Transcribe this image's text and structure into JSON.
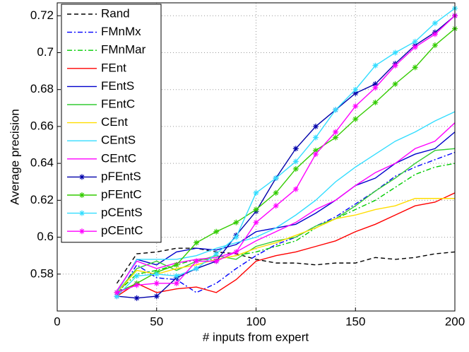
{
  "chart_data": {
    "type": "line",
    "x_label": "# inputs from expert",
    "y_label": "Average precision",
    "x": [
      30,
      40,
      50,
      60,
      70,
      80,
      90,
      100,
      110,
      120,
      130,
      140,
      150,
      160,
      170,
      180,
      190,
      200
    ],
    "xlim": [
      0,
      200
    ],
    "ylim": [
      0.56,
      0.727
    ],
    "xticks": [
      0,
      50,
      100,
      150,
      200
    ],
    "yticks": [
      0.58,
      0.6,
      0.62,
      0.64,
      0.66,
      0.68,
      0.7,
      0.72
    ],
    "grid": true,
    "legend": "upper left",
    "series": [
      {
        "name": "Rand",
        "color": "#000000",
        "dash": "dashed",
        "values": [
          0.575,
          0.591,
          0.592,
          0.594,
          0.594,
          0.592,
          0.591,
          0.588,
          0.586,
          0.586,
          0.585,
          0.586,
          0.586,
          0.589,
          0.588,
          0.589,
          0.591,
          0.592
        ]
      },
      {
        "name": "FMnMx",
        "color": "#0000ff",
        "dash": "dashdot",
        "values": [
          0.568,
          0.585,
          0.578,
          0.577,
          0.57,
          0.575,
          0.583,
          0.59,
          0.596,
          0.6,
          0.606,
          0.611,
          0.618,
          0.625,
          0.633,
          0.638,
          0.642,
          0.646
        ]
      },
      {
        "name": "FMnMar",
        "color": "#00cc00",
        "dash": "dashdot",
        "values": [
          0.57,
          0.58,
          0.582,
          0.585,
          0.588,
          0.588,
          0.59,
          0.592,
          0.595,
          0.598,
          0.605,
          0.61,
          0.615,
          0.62,
          0.627,
          0.634,
          0.638,
          0.64
        ]
      },
      {
        "name": "FEnt",
        "color": "#ff0000",
        "values": [
          0.568,
          0.575,
          0.57,
          0.572,
          0.573,
          0.57,
          0.577,
          0.587,
          0.59,
          0.592,
          0.595,
          0.598,
          0.603,
          0.607,
          0.612,
          0.617,
          0.619,
          0.624
        ]
      },
      {
        "name": "FEntS",
        "color": "#0000cc",
        "values": [
          0.57,
          0.588,
          0.585,
          0.592,
          0.594,
          0.593,
          0.596,
          0.603,
          0.605,
          0.607,
          0.613,
          0.62,
          0.628,
          0.632,
          0.64,
          0.645,
          0.648,
          0.657
        ]
      },
      {
        "name": "FEntC",
        "color": "#33cc33",
        "values": [
          0.57,
          0.583,
          0.587,
          0.582,
          0.587,
          0.59,
          0.588,
          0.595,
          0.598,
          0.6,
          0.606,
          0.61,
          0.617,
          0.625,
          0.632,
          0.64,
          0.647,
          0.648
        ]
      },
      {
        "name": "CEnt",
        "color": "#ffdd00",
        "values": [
          0.57,
          0.582,
          0.58,
          0.583,
          0.585,
          0.588,
          0.59,
          0.594,
          0.597,
          0.601,
          0.605,
          0.61,
          0.612,
          0.615,
          0.617,
          0.621,
          0.621,
          0.621
        ]
      },
      {
        "name": "CEntS",
        "color": "#33ddff",
        "values": [
          0.57,
          0.588,
          0.588,
          0.588,
          0.59,
          0.594,
          0.597,
          0.6,
          0.605,
          0.612,
          0.62,
          0.63,
          0.638,
          0.645,
          0.652,
          0.657,
          0.663,
          0.668
        ]
      },
      {
        "name": "CEntC",
        "color": "#ff00ff",
        "values": [
          0.571,
          0.587,
          0.583,
          0.586,
          0.588,
          0.589,
          0.592,
          0.598,
          0.603,
          0.608,
          0.615,
          0.62,
          0.628,
          0.635,
          0.64,
          0.648,
          0.652,
          0.662
        ]
      },
      {
        "name": "pFEntS",
        "color": "#0000aa",
        "marker": "star",
        "values": [
          0.568,
          0.567,
          0.568,
          0.578,
          0.583,
          0.587,
          0.601,
          0.614,
          0.632,
          0.648,
          0.66,
          0.669,
          0.678,
          0.683,
          0.694,
          0.704,
          0.711,
          0.72
        ]
      },
      {
        "name": "pFEntC",
        "color": "#33cc00",
        "marker": "star",
        "values": [
          0.57,
          0.575,
          0.581,
          0.585,
          0.597,
          0.603,
          0.608,
          0.615,
          0.624,
          0.637,
          0.647,
          0.654,
          0.664,
          0.673,
          0.683,
          0.692,
          0.704,
          0.713
        ]
      },
      {
        "name": "pCEntS",
        "color": "#33ddff",
        "marker": "star",
        "values": [
          0.568,
          0.579,
          0.58,
          0.579,
          0.583,
          0.591,
          0.6,
          0.624,
          0.632,
          0.641,
          0.654,
          0.669,
          0.68,
          0.693,
          0.7,
          0.706,
          0.716,
          0.724
        ]
      },
      {
        "name": "pCEntC",
        "color": "#ff00ff",
        "marker": "star",
        "values": [
          0.57,
          0.574,
          0.575,
          0.575,
          0.587,
          0.587,
          0.592,
          0.608,
          0.617,
          0.626,
          0.645,
          0.657,
          0.671,
          0.681,
          0.693,
          0.703,
          0.71,
          0.72
        ]
      }
    ]
  }
}
